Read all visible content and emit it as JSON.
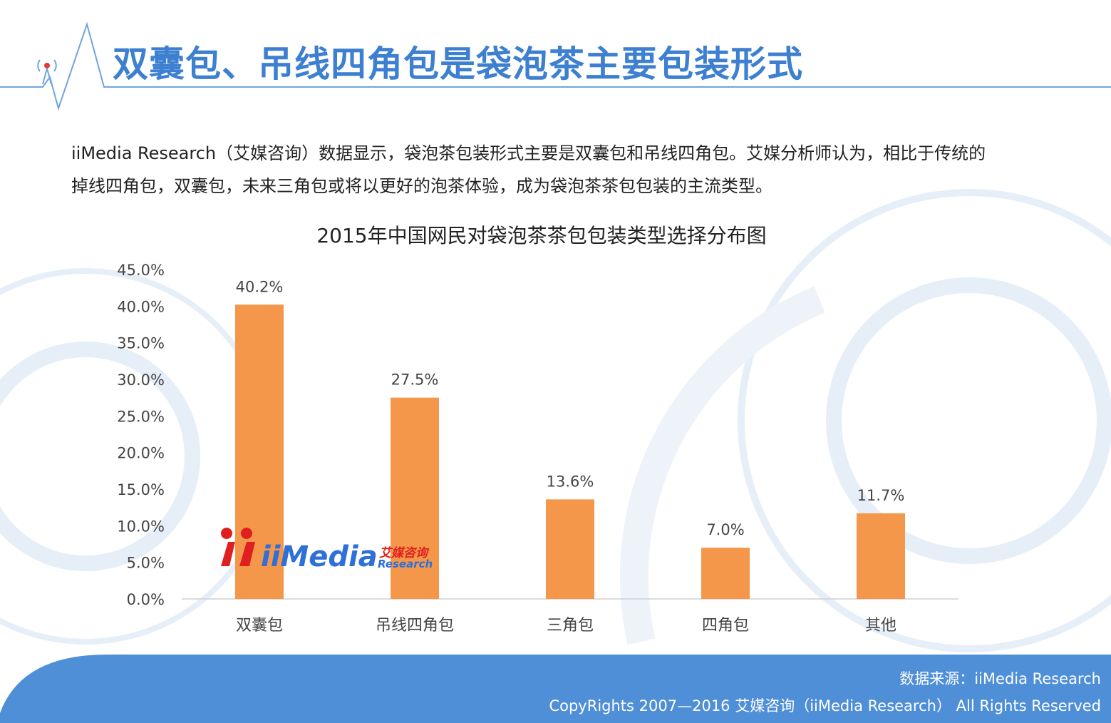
{
  "header": {
    "title": "双囊包、吊线四角包是袋泡茶主要包装形式"
  },
  "intro": {
    "line1": "iiMedia  Research（艾媒咨询）数据显示，袋泡茶包装形式主要是双囊包和吊线四角包。艾媒分析师认为，相比于传统的",
    "line2": "掉线四角包，双囊包，未来三角包或将以更好的泡茶体验，成为袋泡茶茶包包装的主流类型。"
  },
  "watermark": {
    "brand": "iiMedia",
    "cn": "艾媒咨询",
    "en": "Research"
  },
  "footer": {
    "source": "数据来源：iiMedia Research",
    "copyright": "CopyRights 2007—2016 艾媒咨询（iiMedia Research） All Rights Reserved"
  },
  "colors": {
    "bar": "#f5974a",
    "title": "#3d7fd0",
    "footer": "#4f8fd8"
  },
  "chart_data": {
    "type": "bar",
    "title": "2015年中国网民对袋泡茶茶包包装类型选择分布图",
    "categories": [
      "双囊包",
      "吊线四角包",
      "三角包",
      "四角包",
      "其他"
    ],
    "values": [
      40.2,
      27.5,
      13.6,
      7.0,
      11.7
    ],
    "value_labels": [
      "40.2%",
      "27.5%",
      "13.6%",
      "7.0%",
      "11.7%"
    ],
    "y_ticks": [
      "0.0%",
      "5.0%",
      "10.0%",
      "15.0%",
      "20.0%",
      "25.0%",
      "30.0%",
      "35.0%",
      "40.0%",
      "45.0%"
    ],
    "ylim": [
      0,
      45
    ],
    "xlabel": "",
    "ylabel": "",
    "grid": false
  }
}
